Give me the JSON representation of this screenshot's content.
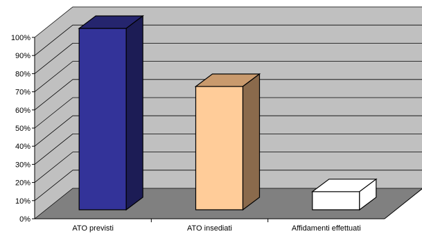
{
  "chart_data": {
    "type": "bar",
    "title": "",
    "xlabel": "",
    "ylabel": "",
    "categories": [
      "ATO previsti",
      "ATO insediati",
      "Affidamenti effettuati"
    ],
    "values": [
      100,
      68,
      10
    ],
    "ylim": [
      0,
      100
    ],
    "yticks": [
      0,
      10,
      20,
      30,
      40,
      50,
      60,
      70,
      80,
      90,
      100
    ],
    "ytick_labels": [
      "0%",
      "10%",
      "20%",
      "30%",
      "40%",
      "50%",
      "60%",
      "70%",
      "80%",
      "90%",
      "100%"
    ],
    "style": "3d-column",
    "grid": true,
    "legend": "none",
    "bar_colors": [
      {
        "front": "#333399",
        "top": "#25256e",
        "side": "#1c1c55"
      },
      {
        "front": "#ffcc99",
        "top": "#c99a6d",
        "side": "#8a6a4c"
      },
      {
        "front": "#ffffff",
        "top": "#ffffff",
        "side": "#ffffff"
      }
    ],
    "wall_color": "#c0c0c0",
    "floor_color": "#808080"
  }
}
